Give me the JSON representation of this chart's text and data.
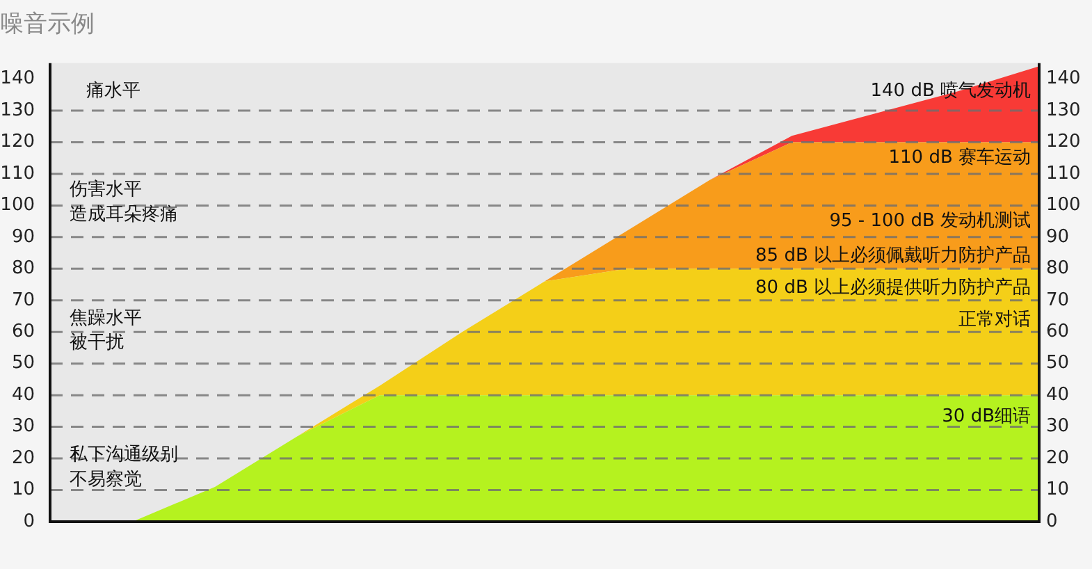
{
  "chart_data": {
    "type": "area",
    "title": "噪音示例",
    "stacked": true,
    "categories": [
      null,
      null,
      null,
      null,
      null,
      null,
      null,
      null,
      null,
      null,
      null,
      null,
      null
    ],
    "series": [
      {
        "color": "#b5f21f",
        "values": [
          0,
          0,
          11,
          27,
          40,
          40,
          40,
          40,
          40,
          40,
          40,
          40,
          40
        ]
      },
      {
        "color": "#f4cf18",
        "values": [
          0,
          0,
          0,
          0,
          3,
          20,
          36,
          40,
          40,
          40,
          40,
          40,
          40
        ]
      },
      {
        "color": "#f89c1b",
        "values": [
          0,
          0,
          0,
          0,
          0,
          0,
          0,
          12,
          28,
          40,
          40,
          40,
          40
        ]
      },
      {
        "color": "#f83a36",
        "values": [
          0,
          0,
          0,
          0,
          0,
          0,
          0,
          0,
          0,
          2,
          9,
          16,
          24
        ]
      }
    ],
    "ylim": [
      0,
      145
    ],
    "yticks": [
      0,
      10,
      20,
      30,
      40,
      50,
      60,
      70,
      80,
      90,
      100,
      110,
      120,
      130,
      140
    ],
    "y2lim": [
      0,
      145
    ],
    "y2ticks": [
      0,
      10,
      20,
      30,
      40,
      50,
      60,
      70,
      80,
      90,
      100,
      110,
      120,
      130,
      140
    ],
    "grid": "y",
    "marker": "none",
    "legend": false,
    "tick_labels": "y",
    "annotations": [
      "痛水平",
      "伤害水平",
      "造成耳朵疼痛",
      "焦躁水平",
      "被干扰",
      "私下沟通级别",
      "不易察觉",
      "140 dB 喷气发动机",
      "110 dB 赛车运动",
      "95 - 100 dB 发动机测试",
      "85 dB 以上必须佩戴听力防护产品",
      "80 dB 以上必须提供听力防护产品",
      "正常对话",
      "30 dB细语"
    ]
  }
}
